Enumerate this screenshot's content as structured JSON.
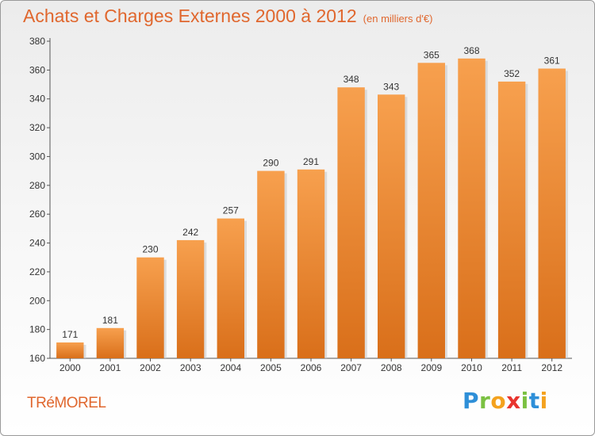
{
  "header": {
    "title": "Achats et Charges Externes 2000 à 2012",
    "subtitle": "(en milliers d'€)"
  },
  "footer": {
    "place": "TRéMOREL",
    "brand": [
      "P",
      "r",
      "o",
      "x",
      "i",
      "t",
      "i"
    ],
    "brand_colors": [
      "#2e8fd8",
      "#7bc142",
      "#f4a21e",
      "#e8342e",
      "#7bc142",
      "#2e8fd8",
      "#f4a21e"
    ]
  },
  "chart_data": {
    "type": "bar",
    "categories": [
      "2000",
      "2001",
      "2002",
      "2003",
      "2004",
      "2005",
      "2006",
      "2007",
      "2008",
      "2009",
      "2010",
      "2011",
      "2012"
    ],
    "values": [
      171,
      181,
      230,
      242,
      257,
      290,
      291,
      348,
      343,
      365,
      368,
      352,
      361
    ],
    "ylim": [
      160,
      380
    ],
    "yticks": [
      160,
      180,
      200,
      220,
      240,
      260,
      280,
      300,
      320,
      340,
      360,
      380
    ],
    "grid": false,
    "bar_color_top": "#f7a04e",
    "bar_color_bottom": "#d96f1a"
  }
}
